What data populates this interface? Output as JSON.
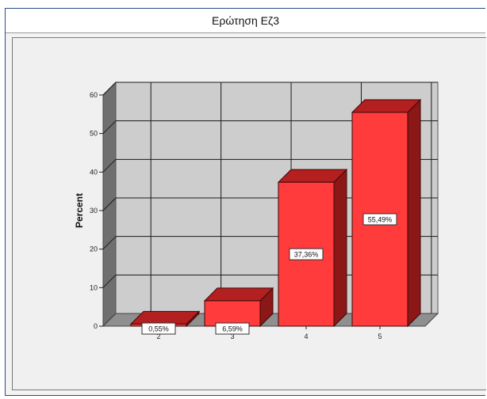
{
  "chart_data": {
    "type": "bar",
    "title": "Ερώτηση Εζ3",
    "xlabel": "",
    "ylabel": "Percent",
    "categories": [
      "2",
      "3",
      "4",
      "5"
    ],
    "values": [
      0.55,
      6.59,
      37.36,
      55.49
    ],
    "data_labels": [
      "0,55%",
      "6,59%",
      "37,36%",
      "55,49%"
    ],
    "ylim": [
      0,
      60
    ],
    "y_ticks": [
      "0",
      "10",
      "20",
      "30",
      "40",
      "50",
      "60"
    ],
    "grid": true,
    "style": "3d",
    "colors": {
      "bar_front": "#ff3b3b",
      "bar_top": "#b41f1f",
      "bar_side": "#8c1717",
      "wall_back": "#cdcdcd",
      "wall_left": "#6f6f6f",
      "floor": "#8f8f8f",
      "grid": "#1a1a1a"
    }
  }
}
